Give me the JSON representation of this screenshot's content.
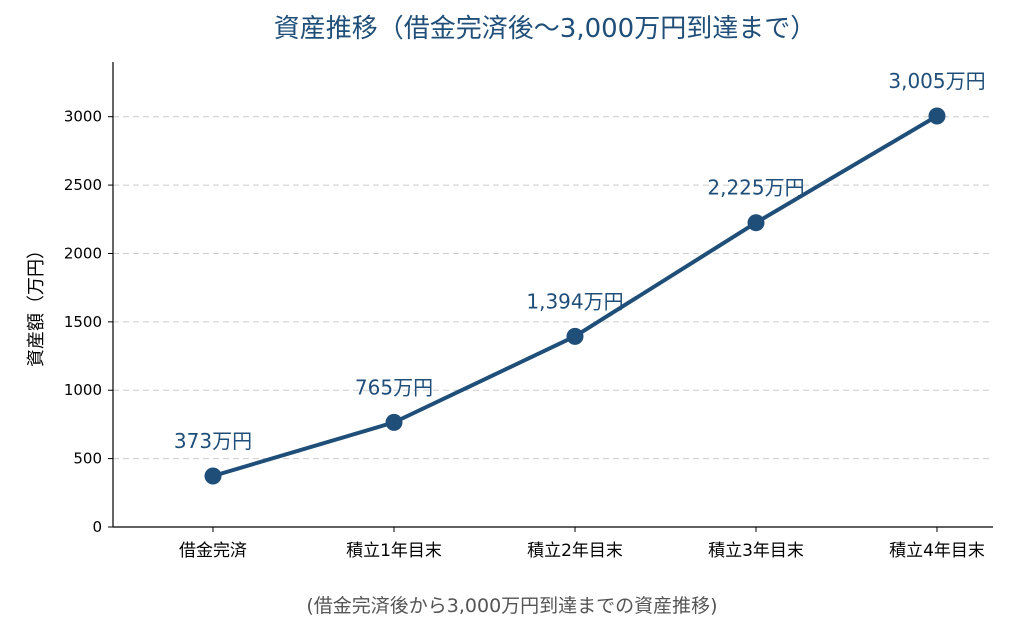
{
  "chart_data": {
    "type": "line",
    "title": "資産推移（借金完済後〜3,000万円到達まで）",
    "ylabel": "資産額（万円）",
    "xlabel": "",
    "caption": "(借金完済後から3,000万円到達までの資産推移)",
    "categories": [
      "借金完済",
      "積立1年目末",
      "積立2年目末",
      "積立3年目末",
      "積立4年目末"
    ],
    "series": [
      {
        "values": [
          373,
          765,
          1394,
          2225,
          3005
        ],
        "labels": [
          "373万円",
          "765万円",
          "1,394万円",
          "2,225万円",
          "3,005万円"
        ]
      }
    ],
    "ylim": [
      0,
      3400
    ],
    "yticks": [
      "0",
      "500",
      "1000",
      "1500",
      "2000",
      "2500",
      "3000"
    ],
    "grid": true,
    "color": "#1f4e79"
  }
}
